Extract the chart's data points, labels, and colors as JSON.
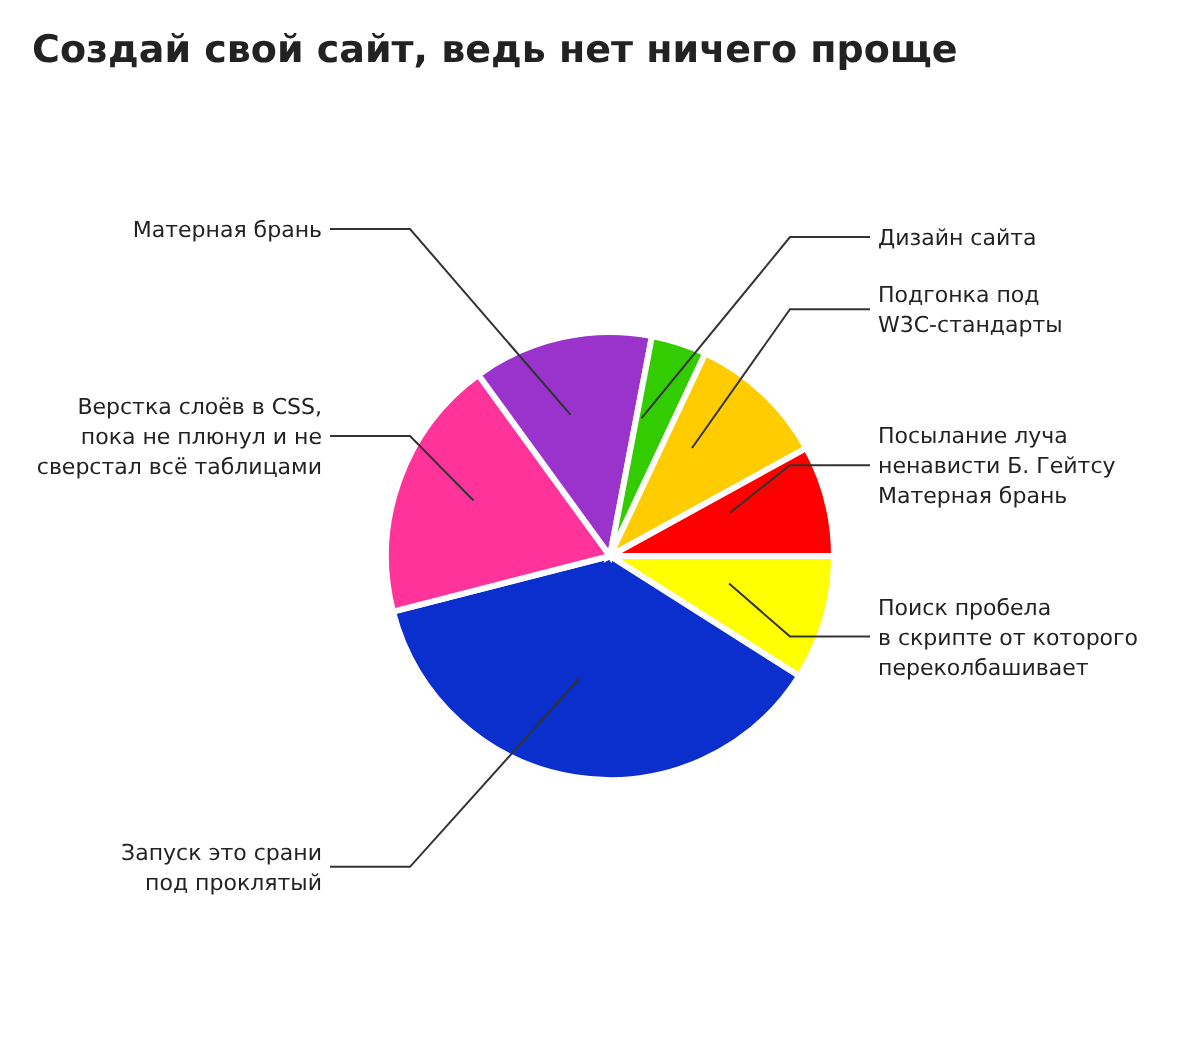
{
  "chart_data": {
    "type": "pie",
    "title": "Создай свой сайт, ведь нет ничего проще",
    "categories": [
      "Поиск пробела\nв скрипте от которого\nпереколбашивает",
      "Запуск это срани\nпод проклятый",
      "Верстка слоёв в CSS,\nпока не плюнул и не\nсверстал всё таблицами",
      "Матерная брань",
      "Дизайн сайта",
      "Подгонка под\nW3C-стандарты",
      "Посылание луча\nненависти Б. Гейтсу\nМатерная брань"
    ],
    "values": [
      9,
      37,
      19,
      13,
      4,
      10,
      8
    ],
    "colors": [
      "#ffff00",
      "#0a2fcc",
      "#ff3399",
      "#9933cc",
      "#33cc00",
      "#ffcc00",
      "#ff0000"
    ]
  }
}
